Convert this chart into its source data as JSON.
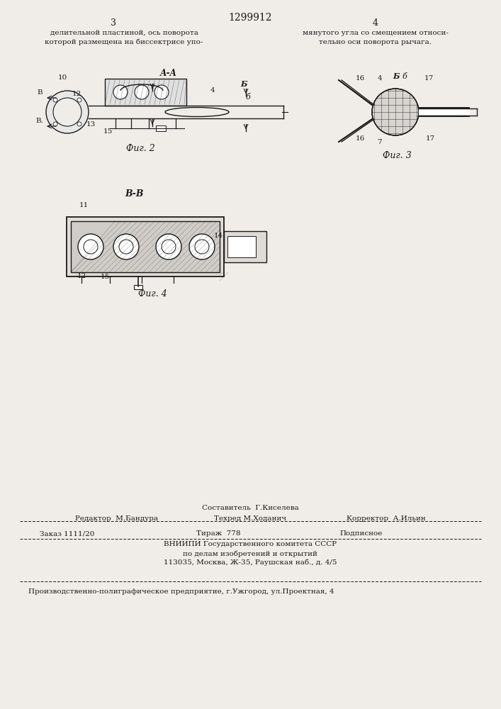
{
  "bg_color": "#f0ede8",
  "page_width": 7.07,
  "page_height": 10.0,
  "header_num": "1299912",
  "header_col_left": "3",
  "header_col_right": "4",
  "text_left_line1": "делительной пластиной, ось поворота",
  "text_left_line2": "которой размещена на биссектрисе упо-",
  "text_right_line1": "мянутого угла со смещением относи-",
  "text_right_line2": "тельно оси поворота рычага.",
  "fig2_label": "Фиг. 2",
  "fig3_label": "Фиг. 3",
  "fig4_label": "Фиг. 4",
  "section_aa": "А-А",
  "section_bb": "В-В",
  "section_b_mark": "Б",
  "editor_line": "Редактор  М.Бандура",
  "composer_line1": "Составитель  Г.Киселева",
  "composer_line2": "Техред М.Ходанич",
  "corrector_line": "Корректор  А.Ильин",
  "order_line": "Заказ 1111/20",
  "print_line": "Тираж  778",
  "sub_line": "Подписное",
  "org_line1": "ВНИИПИ Государственного комитета СССР",
  "org_line2": "по делам изобретений и открытий",
  "org_line3": "113035, Москва, Ж-35, Раушская наб., д. 4/5",
  "prod_line": "Производственно-полиграфическое предприятие, г.Ужгород, ул.Проектная, 4",
  "line_color": "#1a1a1a",
  "dash_line_color": "#333333"
}
